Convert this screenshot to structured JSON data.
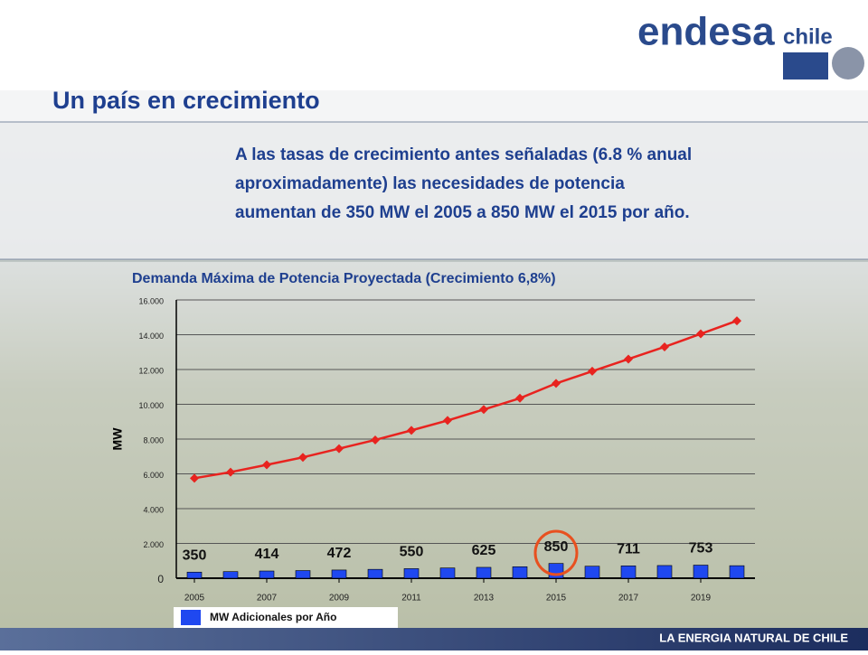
{
  "logo": {
    "word": "endesa",
    "sub": "chile"
  },
  "slide_title": "Un país en crecimiento",
  "paragraph": [
    "A las tasas de crecimiento antes señaladas (6.8 % anual",
    "aproximadamente) las necesidades de potencia",
    "aumentan de 350 MW el 2005 a 850 MW el 2015 por año."
  ],
  "footer": "LA ENERGIA NATURAL DE CHILE",
  "chart_data": {
    "type": "bar-line",
    "title": "Demanda Máxima de Potencia Proyectada (Crecimiento 6,8%)",
    "y_label": "MW",
    "x": [
      2005,
      2006,
      2007,
      2008,
      2009,
      2010,
      2011,
      2012,
      2013,
      2014,
      2015,
      2016,
      2017,
      2018,
      2019,
      2020
    ],
    "xlim": [
      2004.5,
      2020.5
    ],
    "xticks": [
      2005,
      2007,
      2009,
      2011,
      2013,
      2015,
      2017,
      2019
    ],
    "ylim": [
      0,
      16000
    ],
    "yticks": [
      0,
      {
        "value": 2000,
        "label": "2.000"
      },
      {
        "value": 4000,
        "label": "4.000"
      },
      {
        "value": 6000,
        "label": "6.000"
      },
      {
        "value": 8000,
        "label": "8.000"
      },
      {
        "value": 10000,
        "label": "10.000"
      },
      {
        "value": 12000,
        "label": "12.000"
      },
      {
        "value": 14000,
        "label": "14.000"
      },
      {
        "value": 16000,
        "label": "16.000"
      }
    ],
    "grid": true,
    "series": [
      {
        "name": "MW Adicionales por Año",
        "type": "bar",
        "color": "#1f48f0",
        "values": [
          350,
          380,
          414,
          440,
          472,
          510,
          550,
          590,
          625,
          660,
          850,
          690,
          711,
          730,
          753,
          720
        ],
        "value_labels": [
          "350",
          null,
          "414",
          null,
          "472",
          null,
          "550",
          null,
          "625",
          null,
          "850",
          null,
          "711",
          null,
          "753",
          null
        ]
      },
      {
        "type": "line",
        "color": "#e8231f",
        "values": [
          5750,
          6100,
          6520,
          6950,
          7450,
          7950,
          8500,
          9070,
          9700,
          10350,
          11200,
          11900,
          12600,
          13300,
          14050,
          14800
        ]
      }
    ]
  }
}
